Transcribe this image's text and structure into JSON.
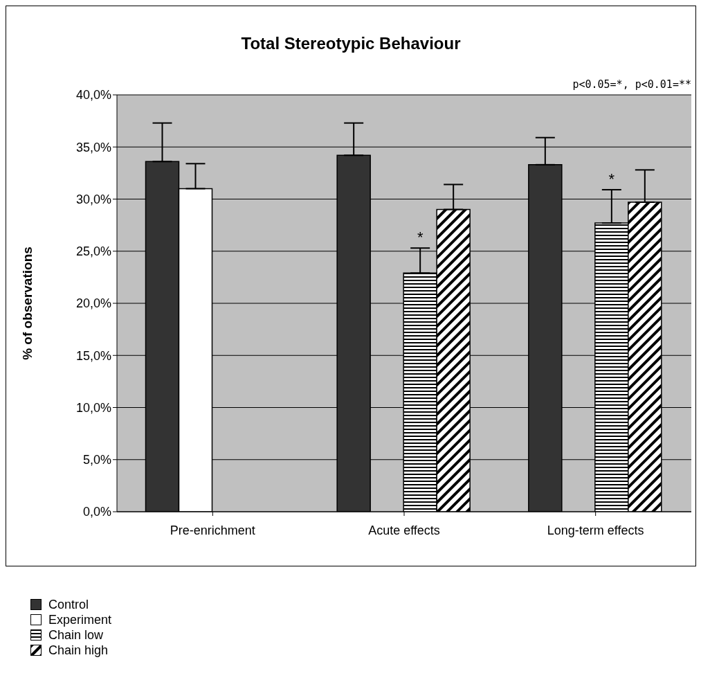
{
  "chart_data": {
    "type": "bar",
    "title": "Total Stereotypic Behaviour",
    "ylabel": "% of observations",
    "categories": [
      "Pre-enrichment",
      "Acute effects",
      "Long-term effects"
    ],
    "series": [
      {
        "name": "Control",
        "color": "#333333",
        "values": [
          33.6,
          34.2,
          33.3
        ],
        "errors": [
          [
            33.6,
            37.3
          ],
          [
            34.2,
            37.3
          ],
          [
            33.3,
            35.9
          ]
        ]
      },
      {
        "name": "Experiment",
        "color": "#ffffff",
        "values": [
          31.0,
          null,
          null
        ],
        "errors": [
          [
            31.0,
            33.4
          ],
          null,
          null
        ]
      },
      {
        "name": "Chain low",
        "color": "#000000",
        "values": [
          null,
          22.9,
          27.7
        ],
        "errors": [
          null,
          [
            22.9,
            25.3
          ],
          [
            27.7,
            30.9
          ]
        ],
        "value_labels": [
          null,
          "*",
          "*"
        ]
      },
      {
        "name": "Chain high",
        "color": "#000000",
        "values": [
          null,
          29.0,
          29.7
        ],
        "errors": [
          null,
          [
            29.0,
            31.4
          ],
          [
            29.7,
            32.8
          ]
        ]
      }
    ],
    "ylim": [
      0,
      40
    ],
    "yticks": [
      {
        "value": 0,
        "label": "0,0%"
      },
      {
        "value": 5,
        "label": "5,0%"
      },
      {
        "value": 10,
        "label": "10,0%"
      },
      {
        "value": 15,
        "label": "15,0%"
      },
      {
        "value": 20,
        "label": "20,0%"
      },
      {
        "value": 25,
        "label": "25,0%"
      },
      {
        "value": 30,
        "label": "30,0%"
      },
      {
        "value": 35,
        "label": "35,0%"
      },
      {
        "value": 40,
        "label": "40,0%"
      }
    ],
    "grid": "y",
    "legend": "bottom left",
    "annotations": [
      "p<0.05=*, p<0.01=**"
    ]
  }
}
